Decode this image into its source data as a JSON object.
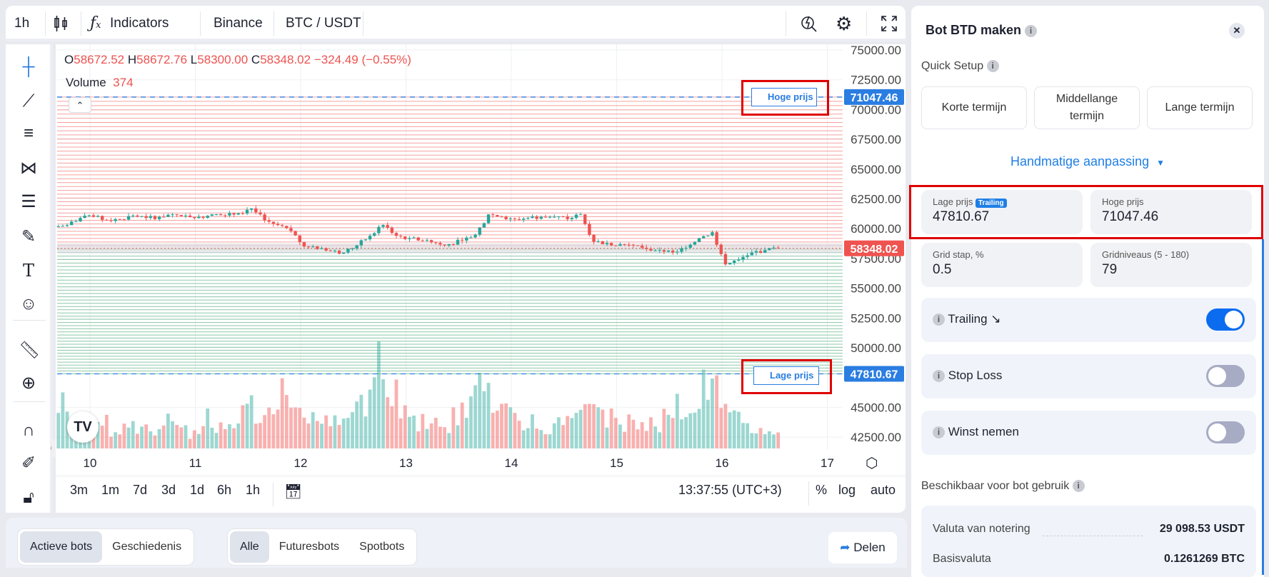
{
  "toolbar": {
    "interval": "1h",
    "indicators": "Indicators",
    "exchange": "Binance",
    "pair": "BTC / USDT",
    "icons": [
      "candles-icon",
      "function-icon",
      "alert-search-icon",
      "gear-icon",
      "fullscreen-icon"
    ]
  },
  "legend": {
    "o_label": "O",
    "o": "58672.52",
    "h_label": "H",
    "h": "58672.76",
    "l_label": "L",
    "l": "58300.00",
    "c_label": "C",
    "c": "58348.02",
    "change": "−324.49 (−0.55%)",
    "volume_label": "Volume",
    "volume": "374"
  },
  "tools": [
    "crosshair-icon",
    "trend-line-icon",
    "horizontal-lines-icon",
    "pattern-icon",
    "fib-icon",
    "brush-icon",
    "text-icon",
    "emoji-icon",
    "ruler-icon",
    "zoom-in-icon",
    "magnet-icon",
    "lock-drawing-icon",
    "unlock-icon"
  ],
  "colors": {
    "up": "#26a69a",
    "down": "#ef5350",
    "accent": "#2a7de1",
    "grid_sell": "#ef5350",
    "grid_buy": "#2e9b5e"
  },
  "chart_data": {
    "type": "candlestick",
    "price_ticks": [
      "75000.00",
      "72500.00",
      "70000.00",
      "67500.00",
      "65000.00",
      "62500.00",
      "60000.00",
      "57500.00",
      "55000.00",
      "52500.00",
      "50000.00",
      "45000.00",
      "42500.00"
    ],
    "ylim": [
      41800,
      76000
    ],
    "x_ticks": [
      "10",
      "11",
      "12",
      "13",
      "14",
      "15",
      "16",
      "17"
    ],
    "x_start_day": 9.7,
    "close_step_hours": 3,
    "closes": [
      60300,
      60900,
      61000,
      60700,
      60800,
      61100,
      60900,
      61000,
      61200,
      61100,
      61000,
      61200,
      61100,
      61300,
      61700,
      60700,
      60300,
      59800,
      58500,
      58300,
      58100,
      58000,
      58600,
      59400,
      60300,
      59400,
      59200,
      59000,
      58800,
      58700,
      59000,
      59500,
      61200,
      61000,
      60800,
      60900,
      61000,
      61000,
      60800,
      61200,
      58900,
      58800,
      58700,
      58600,
      58300,
      58200,
      58000,
      58400,
      59200,
      59700,
      57000,
      57400,
      58000,
      58200,
      58348
    ],
    "volumes": [
      1200,
      600,
      500,
      700,
      400,
      600,
      500,
      450,
      700,
      500,
      400,
      900,
      600,
      800,
      1300,
      700,
      900,
      1500,
      1100,
      800,
      900,
      700,
      1000,
      1200,
      2600,
      1600,
      900,
      700,
      800,
      600,
      1000,
      1300,
      1800,
      1400,
      1000,
      700,
      800,
      600,
      700,
      1100,
      1500,
      900,
      800,
      700,
      600,
      700,
      800,
      1200,
      1300,
      1900,
      1500,
      900,
      600,
      500,
      374
    ],
    "current_price": "58348.02",
    "high_price": "71047.46",
    "low_price": "47810.67",
    "grid_levels": 79
  },
  "chart": {
    "high_tag": "Hoge prijs",
    "low_tag": "Lage prijs"
  },
  "bottom": {
    "ranges": [
      "3m",
      "1m",
      "7d",
      "3d",
      "1d",
      "6h",
      "1h"
    ],
    "time": "13:37:55 (UTC+3)",
    "pct": "%",
    "log": "log",
    "auto": "auto"
  },
  "panel": {
    "title": "Bot BTD maken",
    "quick_setup": "Quick Setup",
    "presets": [
      "Korte termijn",
      "Middellange termijn",
      "Lange termijn"
    ],
    "manual": "Handmatige aanpassing",
    "low_label": "Lage prijs",
    "trailing_badge": "Trailing",
    "low_value": "47810.67",
    "high_label": "Hoge prijs",
    "high_value": "71047.46",
    "step_label": "Grid stap, %",
    "step_value": "0.5",
    "levels_label": "Gridniveaus (5 - 180)",
    "levels_value": "79",
    "trailing": "Trailing",
    "trailing_on": true,
    "stop_loss": "Stop Loss",
    "stop_loss_on": false,
    "take_profit": "Winst nemen",
    "take_profit_on": false,
    "available": "Beschikbaar voor bot gebruik",
    "quote_label": "Valuta van notering",
    "quote_value": "29 098.53 USDT",
    "base_label": "Basisvaluta",
    "base_value": "0.1261269 BTC"
  },
  "footer": {
    "tabs1": [
      "Actieve bots",
      "Geschiedenis"
    ],
    "tabs2": [
      "Alle",
      "Futuresbots",
      "Spotbots"
    ],
    "share": "Delen"
  }
}
